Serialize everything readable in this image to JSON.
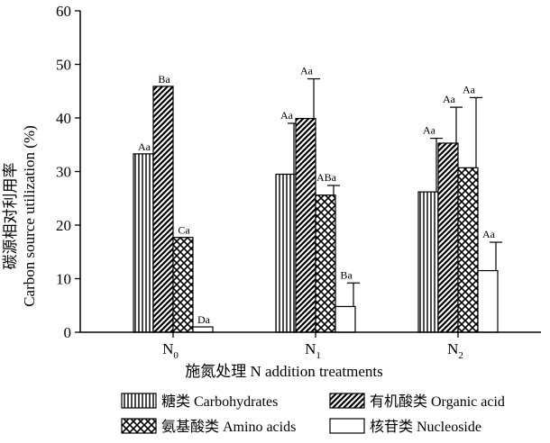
{
  "chart_data": {
    "type": "bar",
    "xlabel": "施氮处理 N addition treatments",
    "ylabel_line1": "碳源相对利用率",
    "ylabel_line2": "Carbon source utilization (%)",
    "ylim": [
      0,
      60
    ],
    "yticks": [
      "0",
      "10",
      "20",
      "30",
      "40",
      "50",
      "60"
    ],
    "categories": [
      {
        "base": "N",
        "sub": "0"
      },
      {
        "base": "N",
        "sub": "1"
      },
      {
        "base": "N",
        "sub": "2"
      }
    ],
    "series": [
      {
        "name": "糖类 Carbohydrates",
        "pattern": "vlines",
        "values": [
          33.3,
          29.5,
          26.2
        ],
        "errors": [
          0,
          9.5,
          10.0
        ],
        "labels": [
          "Aa",
          "Aa",
          "Aa"
        ]
      },
      {
        "name": "有机酸类 Organic acid",
        "pattern": "diag",
        "values": [
          45.9,
          39.9,
          35.3
        ],
        "errors": [
          0,
          7.4,
          6.7
        ],
        "labels": [
          "Ba",
          "Aa",
          "Aa"
        ]
      },
      {
        "name": "氨基酸类 Amino acids",
        "pattern": "cross",
        "values": [
          17.7,
          25.6,
          30.7
        ],
        "errors": [
          0,
          1.8,
          13.1
        ],
        "labels": [
          "Ca",
          "ABa",
          "Aa"
        ]
      },
      {
        "name": "核苷类 Nucleoside",
        "pattern": "none",
        "values": [
          1.0,
          4.8,
          11.5
        ],
        "errors": [
          0,
          4.4,
          5.3
        ],
        "labels": [
          "Da",
          "Ba",
          "Aa"
        ]
      }
    ]
  }
}
